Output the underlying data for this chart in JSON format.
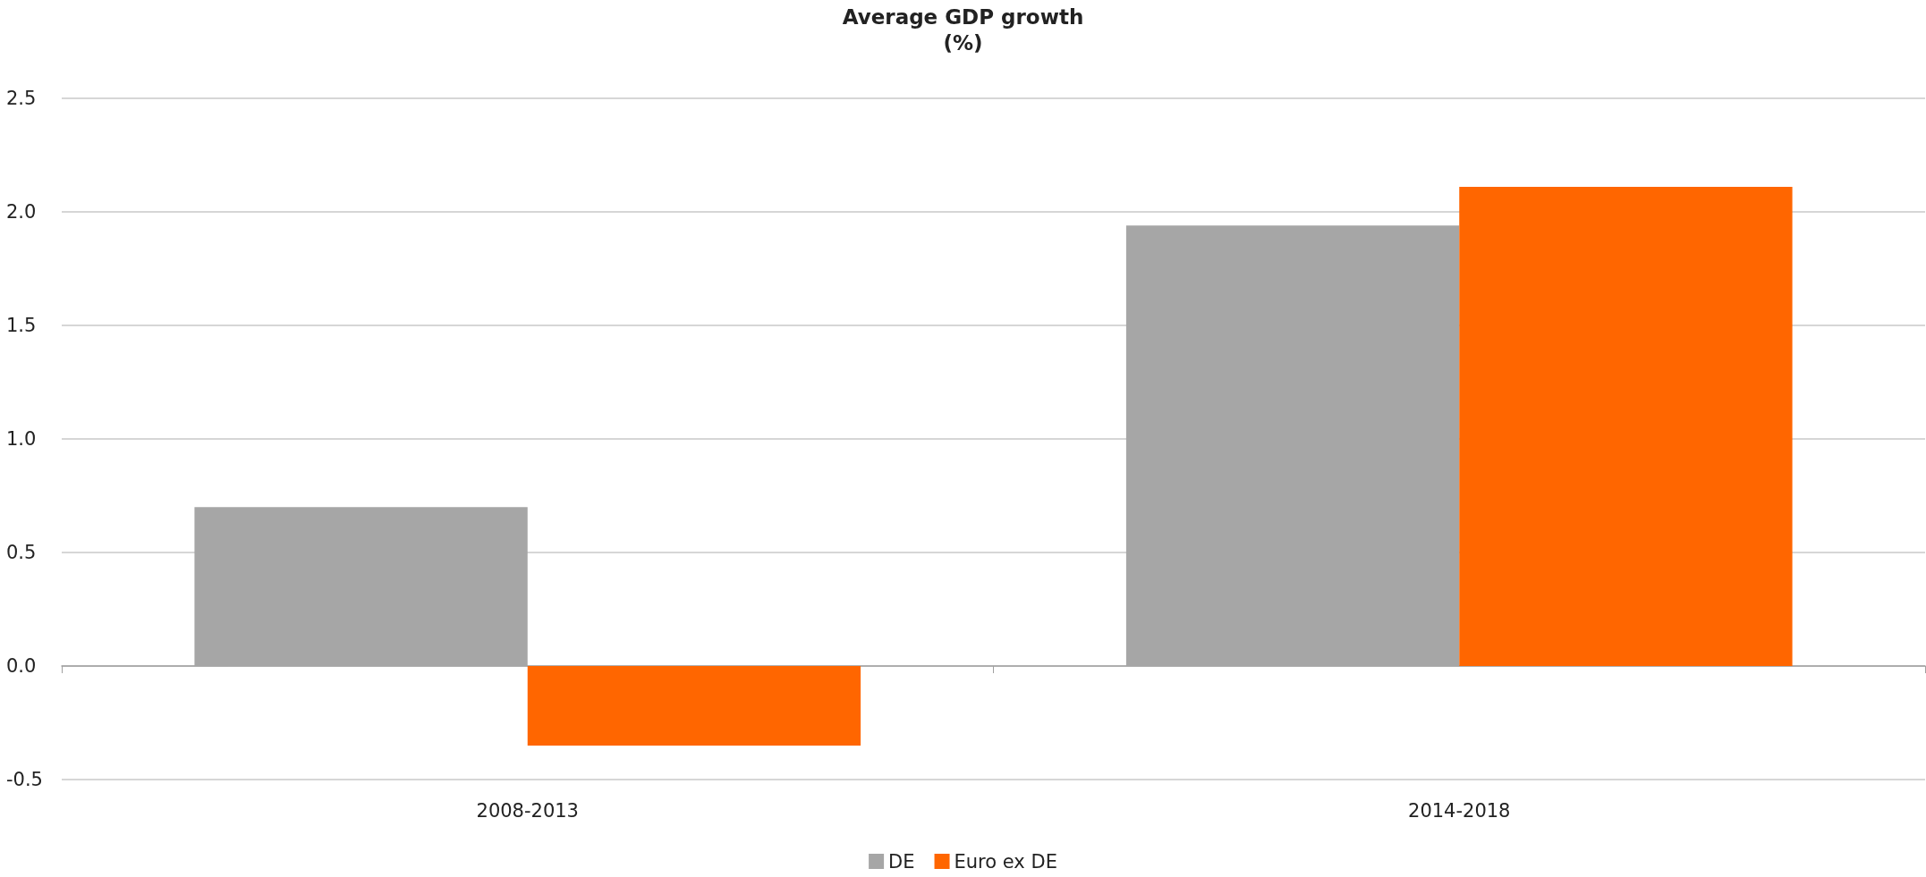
{
  "chart_data": {
    "type": "bar",
    "title": "Average GDP growth",
    "subtitle": "(%)",
    "categories": [
      "2008-2013",
      "2014-2018"
    ],
    "series": [
      {
        "name": "DE",
        "color": "#a6a6a6",
        "values": [
          0.7,
          1.94
        ]
      },
      {
        "name": "Euro ex DE",
        "color": "#ff6600",
        "values": [
          -0.35,
          2.11
        ]
      }
    ],
    "ylim": [
      -0.5,
      2.5
    ],
    "yticks": [
      -0.5,
      {
        "value": 0,
        "label": "0.0"
      },
      0.5,
      {
        "value": 1,
        "label": "1.0"
      },
      1.5,
      {
        "value": 2,
        "label": "2.0"
      },
      2.5
    ],
    "grid": "y",
    "legend": "bottom"
  }
}
